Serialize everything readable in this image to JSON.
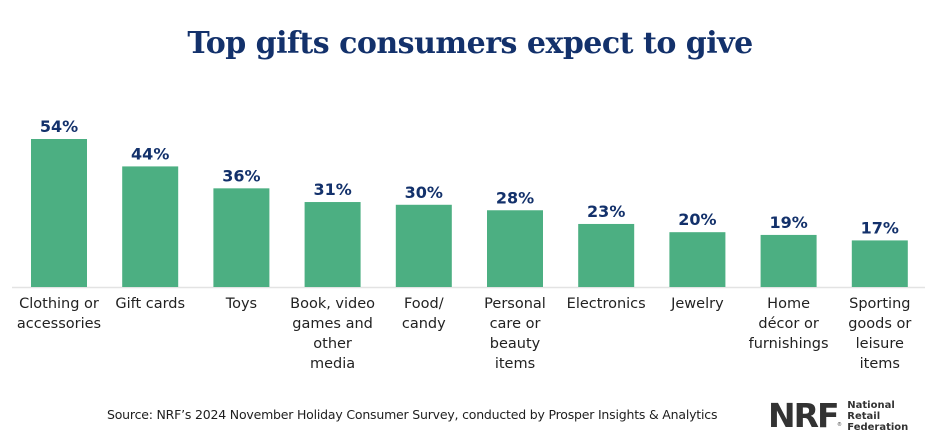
{
  "chart_data": {
    "type": "bar",
    "title": "Top gifts consumers expect to give",
    "xlabel": "",
    "ylabel": "",
    "ylim": [
      0,
      60
    ],
    "grid": false,
    "legend": "none",
    "value_suffix": "%",
    "categories": [
      [
        "Clothing or",
        "accessories"
      ],
      [
        "Gift cards"
      ],
      [
        "Toys"
      ],
      [
        "Book, video",
        "games and",
        "other",
        "media"
      ],
      [
        "Food/",
        "candy"
      ],
      [
        "Personal",
        "care or",
        "beauty",
        "items"
      ],
      [
        "Electronics"
      ],
      [
        "Jewelry"
      ],
      [
        "Home",
        "décor or",
        "furnishings"
      ],
      [
        "Sporting",
        "goods or",
        "leisure",
        "items"
      ]
    ],
    "values": [
      54,
      44,
      36,
      31,
      30,
      28,
      23,
      20,
      19,
      17
    ],
    "data_labels": [
      "54%",
      "44%",
      "36%",
      "31%",
      "30%",
      "28%",
      "23%",
      "20%",
      "19%",
      "17%"
    ],
    "colors": {
      "bar": "#4caf82",
      "label": "#13316b",
      "title": "#13316b"
    }
  },
  "source": "Source: NRF’s 2024 November Holiday Consumer Survey, conducted by Prosper Insights & Analytics",
  "logo": {
    "mark": "NRF",
    "registered": "®",
    "lines": [
      "National",
      "Retail",
      "Federation"
    ]
  }
}
